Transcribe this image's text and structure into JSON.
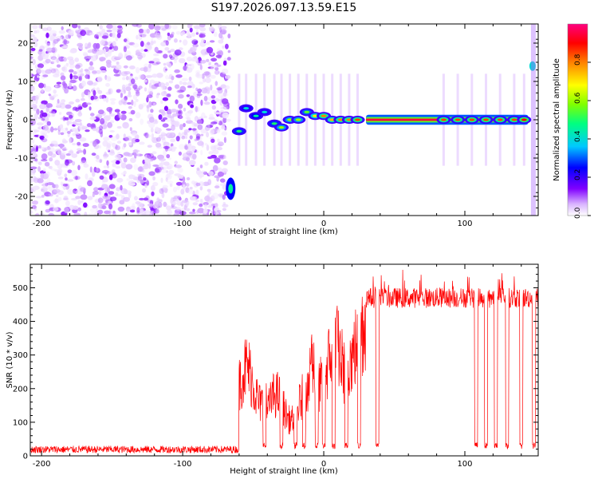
{
  "title": "S197.2026.097.13.59.E15",
  "chart_data": [
    {
      "type": "heatmap",
      "title": "S197.2026.097.13.59.E15",
      "xlabel": "Height of straight line (km)",
      "ylabel": "Frequency (Hz)",
      "xlim": [
        -208,
        152
      ],
      "ylim": [
        -25,
        25
      ],
      "x_ticks": [
        -200,
        -100,
        0,
        100
      ],
      "y_ticks": [
        -20,
        -10,
        0,
        10,
        20
      ],
      "colorbar": {
        "label": "Normalized spectral amplitude",
        "range": [
          0,
          1
        ],
        "ticks": [
          0,
          0.2,
          0.4,
          0.6,
          0.8
        ],
        "tick_labels": [
          "0.0",
          "0.2",
          "0.4",
          "0.6",
          "0.8"
        ],
        "colors": [
          "#ffffff",
          "#d9b3ff",
          "#8000ff",
          "#0000ff",
          "#00c8ff",
          "#00ff80",
          "#80ff00",
          "#ffff00",
          "#ff8000",
          "#ff0000",
          "#ff0080"
        ]
      },
      "regions": [
        {
          "name": "noise",
          "x_range": [
            -208,
            -67
          ],
          "freq_range": [
            -25,
            25
          ],
          "amplitude": [
            0.0,
            0.1
          ]
        },
        {
          "name": "signal-line",
          "x_range": [
            30,
            145
          ],
          "freq": 0,
          "amplitude": 0.95
        },
        {
          "name": "signal-blobs",
          "x": [
            -60,
            -55,
            -48,
            -42,
            -35,
            -30,
            -24,
            -18,
            -12,
            -6,
            0,
            6,
            12,
            18,
            24,
            85,
            95,
            105,
            115,
            125,
            135,
            142
          ],
          "freq": [
            -3,
            3,
            1,
            2,
            -1,
            -2,
            0,
            0,
            2,
            1,
            1,
            0,
            0,
            0,
            0,
            0,
            0,
            0,
            0,
            0,
            0,
            0
          ],
          "amplitude": [
            0.5,
            0.4,
            0.45,
            0.4,
            0.5,
            0.6,
            0.6,
            0.6,
            0.55,
            0.7,
            0.8,
            0.75,
            0.8,
            0.8,
            0.85,
            0.85,
            0.85,
            0.85,
            0.85,
            0.85,
            0.85,
            0.9
          ]
        },
        {
          "name": "edge-blob",
          "x": 148,
          "freq": 14,
          "amplitude": 0.4
        }
      ]
    },
    {
      "type": "line",
      "xlabel": "Height of straight line (km)",
      "ylabel": "SNR (10 * v/v)",
      "xlim": [
        -208,
        152
      ],
      "ylim": [
        0,
        570
      ],
      "x_ticks": [
        -200,
        -100,
        0,
        100
      ],
      "y_ticks": [
        0,
        100,
        200,
        300,
        400,
        500
      ],
      "line_color": "#ff0000",
      "segments": [
        {
          "x_range": [
            -208,
            -60
          ],
          "snr_range": [
            8,
            30
          ]
        },
        {
          "x_range": [
            -60,
            -40
          ],
          "snr_range": [
            50,
            340
          ]
        },
        {
          "x_range": [
            -40,
            -10
          ],
          "snr_range": [
            30,
            240
          ]
        },
        {
          "x_range": [
            -10,
            15
          ],
          "snr_range": [
            100,
            420
          ]
        },
        {
          "x_range": [
            15,
            30
          ],
          "snr_range": [
            200,
            480
          ]
        },
        {
          "x_range": [
            30,
            150
          ],
          "snr_range": [
            430,
            560
          ]
        }
      ],
      "dropouts_x": [
        -42,
        -30,
        -20,
        -14,
        -5,
        0,
        7,
        16,
        25,
        38,
        108,
        115,
        122,
        130,
        140,
        149
      ]
    }
  ]
}
